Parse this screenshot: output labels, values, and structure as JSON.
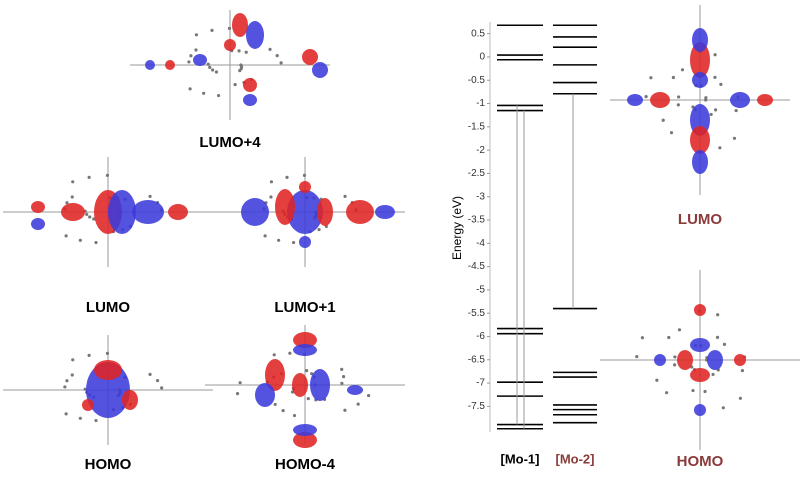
{
  "chart_data": {
    "type": "energy-levels",
    "ylabel": "Energy (eV)",
    "ylim": [
      -8.05,
      0.75
    ],
    "yticks": [
      0.5,
      0,
      -0.5,
      -1,
      -1.5,
      -2,
      -2.5,
      -3,
      -3.5,
      -4,
      -4.5,
      -5,
      -5.5,
      -6,
      -6.5,
      -7,
      -7.5
    ],
    "series": [
      {
        "name": "[Mo-1]",
        "color": "#000000",
        "label_color": "#000000",
        "values": [
          0.68,
          0.04,
          -0.06,
          -1.04,
          -1.15,
          -5.83,
          -5.94,
          -6.98,
          -7.28,
          -7.89,
          -7.98
        ]
      },
      {
        "name": "[Mo-2]",
        "color": "#000000",
        "label_color": "#8b3a3a",
        "values": [
          0.68,
          0.43,
          0.21,
          -0.17,
          -0.55,
          -0.79,
          -5.4,
          -6.77,
          -6.87,
          -7.47,
          -7.57,
          -7.68,
          -7.85
        ]
      }
    ]
  },
  "orbitals": [
    {
      "label": "LUMO+4",
      "color": "#000000"
    },
    {
      "label": "LUMO",
      "color": "#000000"
    },
    {
      "label": "LUMO+1",
      "color": "#000000"
    },
    {
      "label": "HOMO",
      "color": "#000000"
    },
    {
      "label": "HOMO-4",
      "color": "#000000"
    },
    {
      "label": "LUMO",
      "color": "#8b3a3a"
    },
    {
      "label": "HOMO",
      "color": "#8b3a3a"
    }
  ]
}
